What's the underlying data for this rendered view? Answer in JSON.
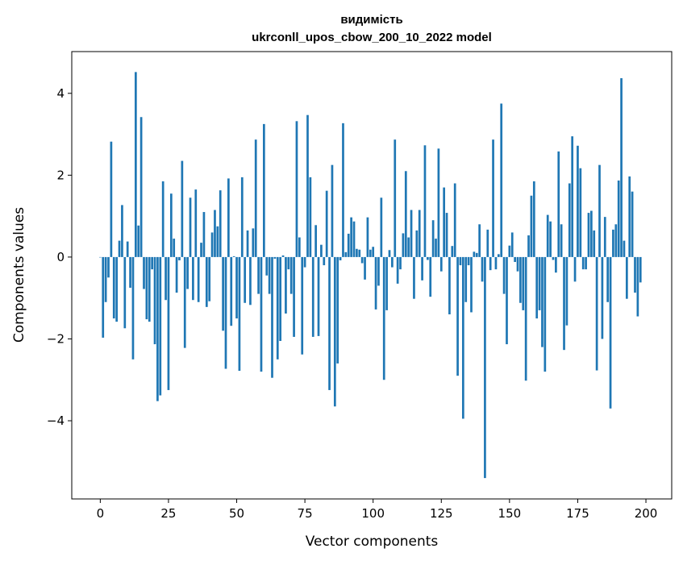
{
  "chart_data": {
    "type": "bar",
    "title_line1": "видимість",
    "title_line2": "ukrconll_upos_cbow_200_10_2022 model",
    "xlabel": "Vector components",
    "ylabel": "Components values",
    "xlim": [
      -10.45,
      209.45
    ],
    "ylim": [
      -5.91,
      5.02
    ],
    "xticks": [
      0,
      25,
      50,
      75,
      100,
      125,
      150,
      175,
      200
    ],
    "xtick_labels": [
      "0",
      "25",
      "50",
      "75",
      "100",
      "125",
      "150",
      "175",
      "200"
    ],
    "yticks": [
      -4,
      -2,
      0,
      2,
      4
    ],
    "ytick_labels": [
      "−4",
      "−2",
      "0",
      "2",
      "4"
    ],
    "color": "#1f77b4",
    "grid": false,
    "values": [
      0.0,
      -1.97,
      -1.1,
      -0.5,
      2.82,
      -1.5,
      -1.58,
      0.4,
      1.27,
      -1.74,
      0.38,
      -0.75,
      -2.5,
      4.52,
      0.77,
      3.42,
      -0.78,
      -1.52,
      -1.58,
      -0.3,
      -2.13,
      -3.52,
      -3.38,
      1.85,
      -1.05,
      -3.25,
      1.55,
      0.45,
      -0.87,
      -0.08,
      2.35,
      -2.22,
      -0.78,
      1.45,
      -1.05,
      1.65,
      -1.1,
      0.35,
      1.1,
      -1.22,
      -1.08,
      0.6,
      1.15,
      0.75,
      1.63,
      -1.8,
      -2.73,
      1.92,
      -1.68,
      0.02,
      -1.5,
      -2.78,
      1.95,
      -1.12,
      0.65,
      -1.17,
      0.7,
      2.87,
      -0.9,
      -2.8,
      3.25,
      -0.45,
      -0.9,
      -2.95,
      -0.04,
      -2.5,
      -2.05,
      0.04,
      -1.38,
      -0.3,
      -0.9,
      -1.95,
      3.32,
      0.48,
      -2.38,
      -0.25,
      3.47,
      1.95,
      -1.95,
      0.78,
      -1.93,
      0.3,
      -0.2,
      1.62,
      -3.25,
      2.25,
      -3.65,
      -2.6,
      -0.08,
      3.27,
      0.12,
      0.57,
      0.97,
      0.87,
      0.2,
      0.18,
      -0.15,
      -0.55,
      0.97,
      0.18,
      0.25,
      -1.28,
      -0.7,
      1.45,
      -3.0,
      -1.3,
      0.17,
      -0.25,
      2.87,
      -0.65,
      -0.3,
      0.58,
      2.1,
      0.48,
      1.15,
      -1.02,
      0.65,
      1.15,
      -0.57,
      2.73,
      -0.07,
      -0.97,
      0.9,
      0.45,
      2.65,
      -0.35,
      1.7,
      1.08,
      -1.4,
      0.27,
      1.8,
      -2.9,
      -0.2,
      -3.95,
      -1.1,
      -0.2,
      -1.35,
      0.13,
      0.1,
      0.8,
      -0.6,
      -5.4,
      0.67,
      -0.32,
      2.87,
      -0.3,
      0.07,
      3.75,
      -0.9,
      -2.13,
      0.28,
      0.6,
      -0.12,
      -0.35,
      -1.12,
      -1.3,
      -3.02,
      0.53,
      1.5,
      1.85,
      -1.5,
      -1.3,
      -2.2,
      -2.8,
      1.03,
      0.87,
      -0.07,
      -0.38,
      2.58,
      0.8,
      -2.27,
      -1.67,
      1.8,
      2.95,
      -0.6,
      2.72,
      2.17,
      -0.3,
      -0.3,
      1.08,
      1.13,
      0.65,
      -2.77,
      2.25,
      -2.0,
      0.98,
      -1.1,
      -3.7,
      0.67,
      0.8,
      1.87,
      4.37,
      0.4,
      -1.02,
      1.97,
      1.6,
      -0.87,
      -1.45,
      -0.62
    ]
  }
}
